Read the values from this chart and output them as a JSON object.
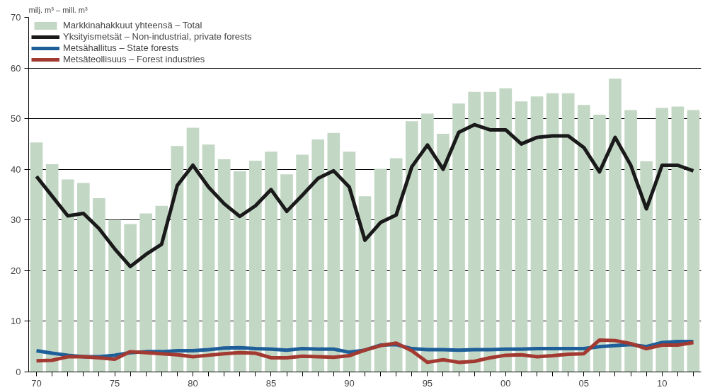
{
  "chart_data": {
    "type": "bar",
    "ylabel": "milj. m³ – mill. m³",
    "x": [
      1970,
      1971,
      1972,
      1973,
      1974,
      1975,
      1976,
      1977,
      1978,
      1979,
      1980,
      1981,
      1982,
      1983,
      1984,
      1985,
      1986,
      1987,
      1988,
      1989,
      1990,
      1991,
      1992,
      1993,
      1994,
      1995,
      1996,
      1997,
      1998,
      1999,
      2000,
      2001,
      2002,
      2003,
      2004,
      2005,
      2006,
      2007,
      2008,
      2009,
      2010,
      2011,
      2012
    ],
    "series": [
      {
        "name": "Markkinahakkuut yhteensä – Total",
        "color": "#c3d7c5",
        "values": [
          45.3,
          41,
          38,
          37.3,
          34.3,
          30,
          29.2,
          31.3,
          32.8,
          44.6,
          48.2,
          44.9,
          42,
          39.6,
          41.7,
          43.5,
          39,
          42.9,
          45.9,
          47.2,
          43.5,
          34.7,
          40.1,
          42.2,
          49.5,
          51,
          47,
          53,
          55.3,
          55.3,
          56,
          53.4,
          54.4,
          55,
          55,
          52.7,
          50.8,
          57.9,
          51.7,
          41.6,
          52.1,
          52.4,
          51.7
        ]
      },
      {
        "name": "Yksityismetsät – Non-industrial, private forests",
        "type": "line",
        "color": "#1a1a1a",
        "values": [
          38.6,
          34.7,
          30.8,
          31.3,
          28.3,
          24.3,
          20.8,
          23.2,
          25.2,
          36.8,
          40.8,
          36.5,
          33.2,
          30.7,
          32.8,
          36,
          31.7,
          34.9,
          38.2,
          39.7,
          36.5,
          26,
          29.5,
          31,
          40.5,
          44.8,
          40,
          47.3,
          48.8,
          47.8,
          47.8,
          45,
          46.3,
          46.6,
          46.6,
          44.3,
          39.5,
          46.3,
          40.8,
          32.2,
          40.8,
          40.8,
          39.7
        ]
      },
      {
        "name": "Metsähallitus – State forests",
        "type": "line",
        "color": "#1f5f99",
        "values": [
          4.2,
          3.7,
          3.3,
          3,
          3,
          3.3,
          3.8,
          4,
          4,
          4.2,
          4.2,
          4.4,
          4.7,
          4.8,
          4.6,
          4.5,
          4.3,
          4.6,
          4.5,
          4.5,
          3.9,
          4.3,
          5.3,
          5.4,
          4.6,
          4.4,
          4.4,
          4.3,
          4.4,
          4.4,
          4.5,
          4.5,
          4.6,
          4.6,
          4.6,
          4.6,
          5,
          5.2,
          5.4,
          5,
          5.8,
          6,
          6
        ]
      },
      {
        "name": "Metsäteollisuus – Forest industries",
        "type": "line",
        "color": "#a33a32",
        "values": [
          2.2,
          2.3,
          3,
          3,
          2.8,
          2.5,
          4,
          3.8,
          3.6,
          3.4,
          3,
          3.3,
          3.6,
          3.8,
          3.7,
          2.8,
          2.8,
          3.1,
          3,
          2.9,
          3.2,
          4.3,
          5.2,
          5.7,
          4.2,
          1.9,
          2.4,
          1.9,
          2.1,
          2.8,
          3.3,
          3.4,
          3,
          3.2,
          3.5,
          3.6,
          6.3,
          6.2,
          5.6,
          4.6,
          5.3,
          5.3,
          5.8
        ]
      }
    ],
    "xlim": [
      1969.5,
      2012.5
    ],
    "xticks": [
      {
        "value": 1970,
        "label": "70"
      },
      {
        "value": 1971,
        "label": null
      },
      {
        "value": 1972,
        "label": null
      },
      {
        "value": 1973,
        "label": null
      },
      {
        "value": 1974,
        "label": null
      },
      {
        "value": 1975,
        "label": "75"
      },
      {
        "value": 1976,
        "label": null
      },
      {
        "value": 1977,
        "label": null
      },
      {
        "value": 1978,
        "label": null
      },
      {
        "value": 1979,
        "label": null
      },
      {
        "value": 1980,
        "label": "80"
      },
      {
        "value": 1981,
        "label": null
      },
      {
        "value": 1982,
        "label": null
      },
      {
        "value": 1983,
        "label": null
      },
      {
        "value": 1984,
        "label": null
      },
      {
        "value": 1985,
        "label": "85"
      },
      {
        "value": 1986,
        "label": null
      },
      {
        "value": 1987,
        "label": null
      },
      {
        "value": 1988,
        "label": null
      },
      {
        "value": 1989,
        "label": null
      },
      {
        "value": 1990,
        "label": "90"
      },
      {
        "value": 1991,
        "label": null
      },
      {
        "value": 1992,
        "label": null
      },
      {
        "value": 1993,
        "label": null
      },
      {
        "value": 1994,
        "label": null
      },
      {
        "value": 1995,
        "label": "95"
      },
      {
        "value": 1996,
        "label": null
      },
      {
        "value": 1997,
        "label": null
      },
      {
        "value": 1998,
        "label": null
      },
      {
        "value": 1999,
        "label": null
      },
      {
        "value": 2000,
        "label": "00"
      },
      {
        "value": 2001,
        "label": null
      },
      {
        "value": 2002,
        "label": null
      },
      {
        "value": 2003,
        "label": null
      },
      {
        "value": 2004,
        "label": null
      },
      {
        "value": 2005,
        "label": "05"
      },
      {
        "value": 2006,
        "label": null
      },
      {
        "value": 2007,
        "label": null
      },
      {
        "value": 2008,
        "label": null
      },
      {
        "value": 2009,
        "label": null
      },
      {
        "value": 2010,
        "label": "10"
      },
      {
        "value": 2011,
        "label": null
      },
      {
        "value": 2012,
        "label": null
      }
    ],
    "ylim": [
      0,
      70
    ],
    "yticks": [
      0,
      10,
      20,
      30,
      40,
      50,
      60,
      70
    ],
    "grid": "y",
    "legend": "top left",
    "line_style": "solid"
  }
}
